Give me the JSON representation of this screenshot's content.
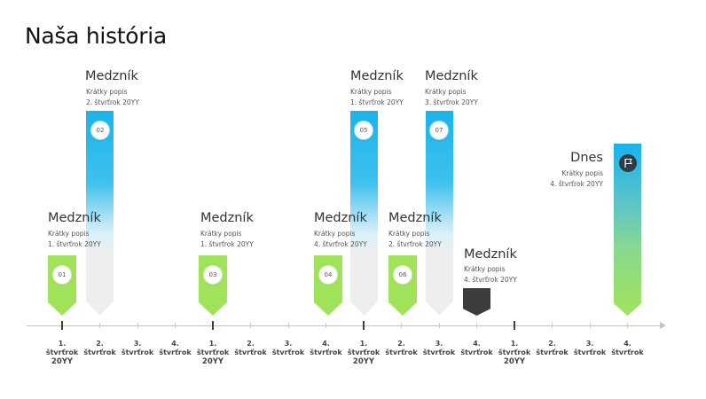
{
  "title": "Naša história",
  "axis": {
    "ticks": [
      {
        "line1": "1.",
        "line2": "štvrťrok",
        "line3": "20YY"
      },
      {
        "line1": "2.",
        "line2": "štvrťrok"
      },
      {
        "line1": "3.",
        "line2": "štvrťrok"
      },
      {
        "line1": "4.",
        "line2": "štvrťrok"
      },
      {
        "line1": "1.",
        "line2": "štvrťrok",
        "line3": "20YY"
      },
      {
        "line1": "2.",
        "line2": "štvrťrok"
      },
      {
        "line1": "3.",
        "line2": "štvrťrok"
      },
      {
        "line1": "4.",
        "line2": "štvrťrok"
      },
      {
        "line1": "1.",
        "line2": "štvrťrok",
        "line3": "20YY"
      },
      {
        "line1": "2.",
        "line2": "štvrťrok"
      },
      {
        "line1": "3.",
        "line2": "štvrťrok"
      },
      {
        "line1": "4.",
        "line2": "štvrťrok"
      },
      {
        "line1": "1.",
        "line2": "štvrťrok",
        "line3": "20YY"
      },
      {
        "line1": "2.",
        "line2": "štvrťrok"
      },
      {
        "line1": "3.",
        "line2": "štvrťrok"
      },
      {
        "line1": "4.",
        "line2": "štvrťrok"
      }
    ]
  },
  "milestones": [
    {
      "num": "01",
      "title": "Medzník",
      "desc": "Krátky popis",
      "when": "1. štvrťrok 20YY",
      "style": "green"
    },
    {
      "num": "02",
      "title": "Medzník",
      "desc": "Krátky popis",
      "when": "2. štvrťrok 20YY",
      "style": "blue"
    },
    {
      "num": "03",
      "title": "Medzník",
      "desc": "Krátky popis",
      "when": "1. štvrťrok 20YY",
      "style": "green"
    },
    {
      "num": "04",
      "title": "Medzník",
      "desc": "Krátky popis",
      "when": "4. štvrťrok 20YY",
      "style": "green"
    },
    {
      "num": "05",
      "title": "Medzník",
      "desc": "Krátky popis",
      "when": "1. štvrťrok 20YY",
      "style": "blue"
    },
    {
      "num": "06",
      "title": "Medzník",
      "desc": "Krátky popis",
      "when": "2. štvrťrok 20YY",
      "style": "green"
    },
    {
      "num": "07",
      "title": "Medzník",
      "desc": "Krátky popis",
      "when": "3. štvrťrok 20YY",
      "style": "blue"
    },
    {
      "title": "Medzník",
      "desc": "Krátky popis",
      "when": "4. štvrťrok 20YY",
      "style": "dark"
    }
  ],
  "today": {
    "title": "Dnes",
    "desc": "Krátky popis",
    "when": "4. štvrťrok 20YY",
    "icon": "flag-icon"
  },
  "colors": {
    "green": "#a0e35b",
    "blue": "#1ab4ea",
    "gray": "#eeeeee",
    "dark": "#3c3c3c",
    "axis": "#c2c2c2"
  }
}
